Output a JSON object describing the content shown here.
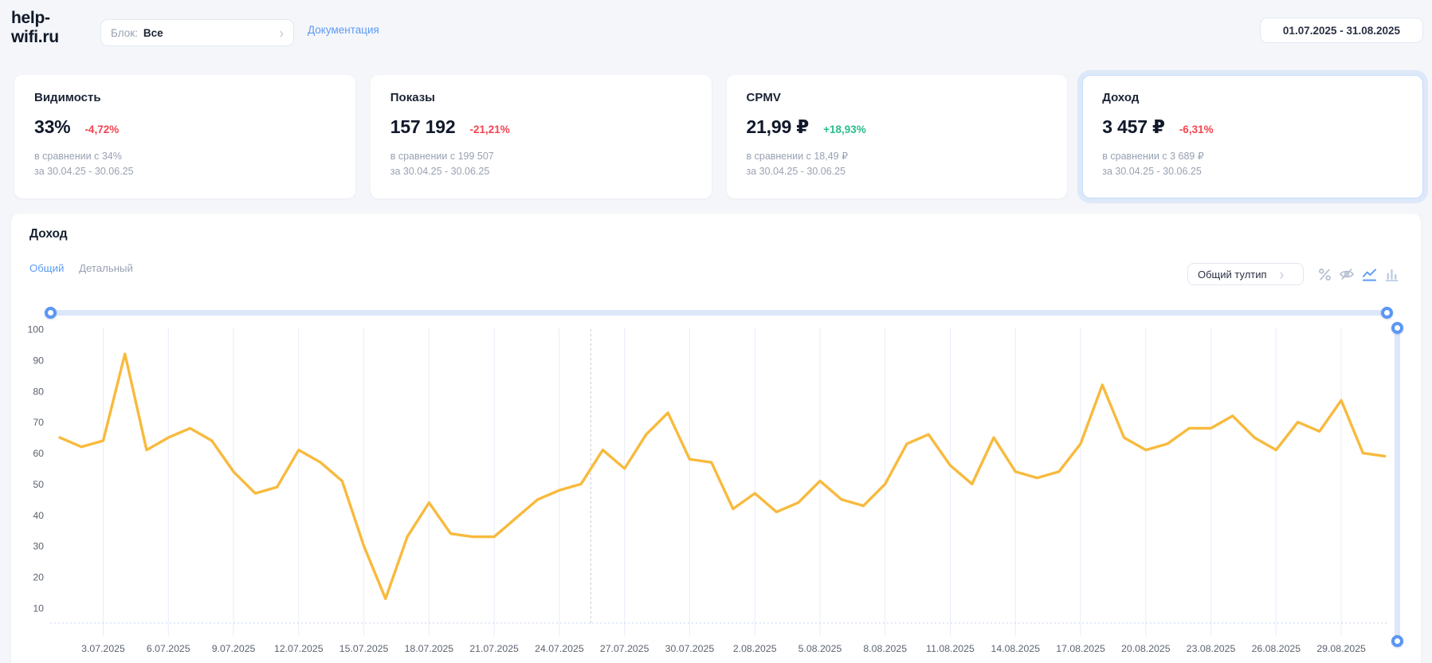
{
  "brand": {
    "line1": "help-",
    "line2": "wifi.ru"
  },
  "topbar": {
    "block_label": "Блок:",
    "block_value": "Все",
    "docs_link": "Документация",
    "date_range": "01.07.2025 - 31.08.2025"
  },
  "cards": [
    {
      "title": "Видимость",
      "value": "33%",
      "delta": "-4,72%",
      "delta_color": "#f4434f",
      "compare": "в сравнении с 34%",
      "period": "за 30.04.25 - 30.06.25",
      "selected": false
    },
    {
      "title": "Показы",
      "value": "157 192",
      "delta": "-21,21%",
      "delta_color": "#f4434f",
      "compare": "в сравнении с 199 507",
      "period": "за 30.04.25 - 30.06.25",
      "selected": false
    },
    {
      "title": "CPMV",
      "value": "21,99 ₽",
      "delta": "+18,93%",
      "delta_color": "#2abd8a",
      "compare": "в сравнении с 18,49 ₽",
      "period": "за 30.04.25 - 30.06.25",
      "selected": false
    },
    {
      "title": "Доход",
      "value": "3 457 ₽",
      "delta": "-6,31%",
      "delta_color": "#f4434f",
      "compare": "в сравнении с 3 689 ₽",
      "period": "за 30.04.25 - 30.06.25",
      "selected": true
    }
  ],
  "chart_section": {
    "title": "Доход",
    "tabs": [
      {
        "label": "Общий",
        "active": true
      },
      {
        "label": "Детальный",
        "active": false
      }
    ],
    "tooltip_select": "Общий тултип",
    "icons": [
      "percent-icon",
      "eye-off-icon",
      "line-chart-icon",
      "bar-chart-icon"
    ],
    "active_icon": "line-chart-icon"
  },
  "chart_data": {
    "type": "line",
    "title": "Доход",
    "start_date": "1.07.2025",
    "end_date": "31.08.2025",
    "x_tick_labels": [
      "3.07.2025",
      "6.07.2025",
      "9.07.2025",
      "12.07.2025",
      "15.07.2025",
      "18.07.2025",
      "21.07.2025",
      "24.07.2025",
      "27.07.2025",
      "30.07.2025",
      "2.08.2025",
      "5.08.2025",
      "8.08.2025",
      "11.08.2025",
      "14.08.2025",
      "17.08.2025",
      "20.08.2025",
      "23.08.2025",
      "26.08.2025",
      "29.08.2025"
    ],
    "x_tick_first_index": 2,
    "x_tick_step": 3,
    "values": [
      65,
      62,
      64,
      92,
      61,
      65,
      68,
      64,
      54,
      47,
      49,
      61,
      57,
      51,
      30,
      13,
      33,
      44,
      34,
      33,
      33,
      39,
      45,
      48,
      50,
      61,
      55,
      66,
      73,
      58,
      57,
      42,
      47,
      41,
      44,
      51,
      45,
      43,
      50,
      63,
      66,
      56,
      50,
      65,
      54,
      52,
      54,
      63,
      82,
      65,
      61,
      63,
      68,
      68,
      72,
      65,
      61,
      70,
      67,
      77,
      60,
      59
    ],
    "y_ticks": [
      100,
      90,
      80,
      70,
      60,
      50,
      40,
      30,
      20,
      10
    ],
    "ylim": [
      5,
      101
    ],
    "grid": "vertical-only",
    "legend": "none",
    "line_color": "#f8ba3d",
    "grid_color": "#e7edf9",
    "baseline_color": "#c7d6f0",
    "crosshair_color": "#c7cbd4",
    "crosshair_index": 24.45
  }
}
